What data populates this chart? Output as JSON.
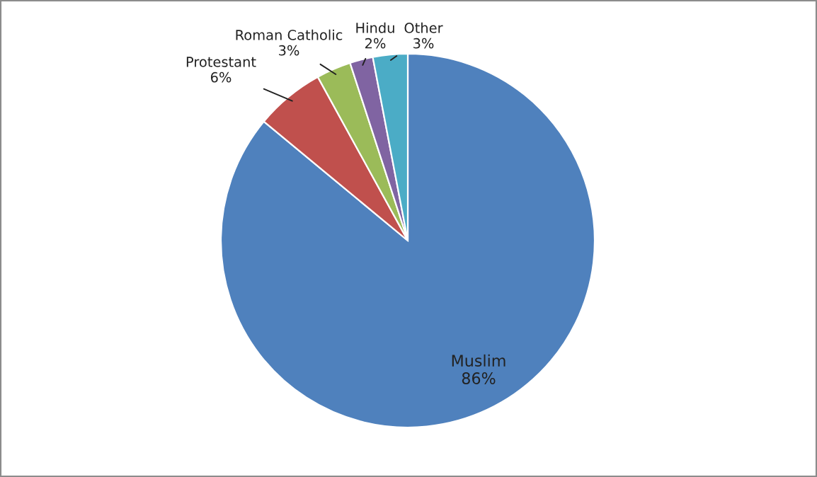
{
  "chart_data": {
    "type": "pie",
    "categories": [
      "Muslim",
      "Protestant",
      "Roman Catholic",
      "Hindu",
      "Other"
    ],
    "values": [
      86,
      6,
      3,
      2,
      3
    ],
    "value_labels": [
      "86%",
      "6%",
      "3%",
      "2%",
      "3%"
    ],
    "colors": [
      "#4f81bd",
      "#c0504d",
      "#9bbb59",
      "#8064a2",
      "#4bacc6"
    ],
    "legend": false
  }
}
